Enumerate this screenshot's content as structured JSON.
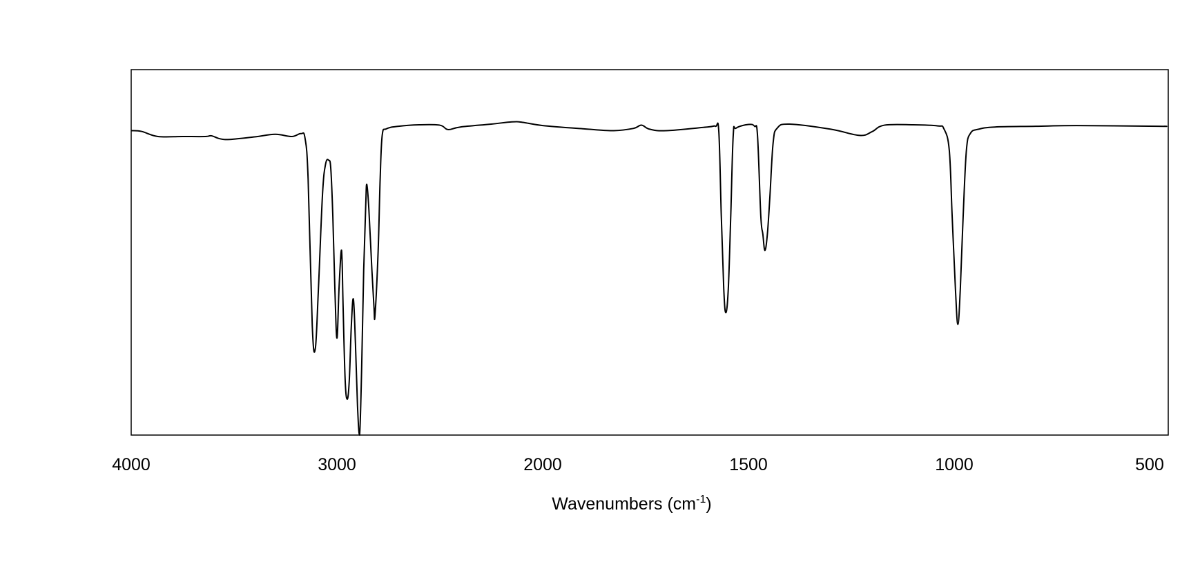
{
  "chart_data": {
    "type": "line",
    "xlabel": "Wavenumbers (cm",
    "xlabel_sup": "-1",
    "xlabel_suffix": ")",
    "xlim": [
      4000,
      475
    ],
    "x_reversed": true,
    "ylim": [
      0,
      1
    ],
    "grid": false,
    "x_ticks": [
      {
        "value": 4000,
        "label": "4000"
      },
      {
        "value": 3000,
        "label": "3000"
      },
      {
        "value": 2000,
        "label": "2000"
      },
      {
        "value": 1500,
        "label": "1500"
      },
      {
        "value": 1000,
        "label": "1000"
      },
      {
        "value": 500,
        "label": "500"
      }
    ],
    "series": [
      {
        "color": "#000000",
        "points": [
          [
            4000,
            0.833
          ],
          [
            3950,
            0.831
          ],
          [
            3870,
            0.817
          ],
          [
            3750,
            0.817
          ],
          [
            3640,
            0.817
          ],
          [
            3610,
            0.819
          ],
          [
            3570,
            0.811
          ],
          [
            3520,
            0.809
          ],
          [
            3400,
            0.816
          ],
          [
            3300,
            0.823
          ],
          [
            3220,
            0.817
          ],
          [
            3175,
            0.825
          ],
          [
            3155,
            0.812
          ],
          [
            3140,
            0.7
          ],
          [
            3120,
            0.3
          ],
          [
            3105,
            0.237
          ],
          [
            3090,
            0.4
          ],
          [
            3070,
            0.66
          ],
          [
            3055,
            0.742
          ],
          [
            3040,
            0.752
          ],
          [
            3030,
            0.73
          ],
          [
            3020,
            0.6
          ],
          [
            3010,
            0.4
          ],
          [
            3000,
            0.265
          ],
          [
            2990,
            0.4
          ],
          [
            2980,
            0.5
          ],
          [
            2975,
            0.477
          ],
          [
            2970,
            0.35
          ],
          [
            2960,
            0.15
          ],
          [
            2950,
            0.098
          ],
          [
            2940,
            0.15
          ],
          [
            2930,
            0.3
          ],
          [
            2920,
            0.372
          ],
          [
            2910,
            0.25
          ],
          [
            2900,
            0.08
          ],
          [
            2890,
            0.0
          ],
          [
            2880,
            0.18
          ],
          [
            2870,
            0.45
          ],
          [
            2860,
            0.63
          ],
          [
            2855,
            0.686
          ],
          [
            2845,
            0.62
          ],
          [
            2830,
            0.45
          ],
          [
            2820,
            0.35
          ],
          [
            2815,
            0.328
          ],
          [
            2800,
            0.5
          ],
          [
            2790,
            0.7
          ],
          [
            2780,
            0.82
          ],
          [
            2760,
            0.838
          ],
          [
            2700,
            0.845
          ],
          [
            2600,
            0.849
          ],
          [
            2500,
            0.848
          ],
          [
            2460,
            0.836
          ],
          [
            2400,
            0.843
          ],
          [
            2250,
            0.851
          ],
          [
            2150,
            0.857
          ],
          [
            2100,
            0.856
          ],
          [
            2000,
            0.847
          ],
          [
            1900,
            0.838
          ],
          [
            1830,
            0.833
          ],
          [
            1780,
            0.839
          ],
          [
            1760,
            0.848
          ],
          [
            1740,
            0.837
          ],
          [
            1700,
            0.833
          ],
          [
            1600,
            0.843
          ],
          [
            1580,
            0.845
          ],
          [
            1572,
            0.83
          ],
          [
            1566,
            0.6
          ],
          [
            1560,
            0.4
          ],
          [
            1555,
            0.335
          ],
          [
            1549,
            0.4
          ],
          [
            1543,
            0.6
          ],
          [
            1537,
            0.82
          ],
          [
            1530,
            0.84
          ],
          [
            1500,
            0.85
          ],
          [
            1485,
            0.845
          ],
          [
            1478,
            0.82
          ],
          [
            1470,
            0.6
          ],
          [
            1465,
            0.55
          ],
          [
            1460,
            0.505
          ],
          [
            1454,
            0.55
          ],
          [
            1448,
            0.65
          ],
          [
            1440,
            0.8
          ],
          [
            1430,
            0.84
          ],
          [
            1400,
            0.851
          ],
          [
            1300,
            0.837
          ],
          [
            1230,
            0.82
          ],
          [
            1200,
            0.83
          ],
          [
            1170,
            0.848
          ],
          [
            1100,
            0.849
          ],
          [
            1040,
            0.846
          ],
          [
            1025,
            0.838
          ],
          [
            1012,
            0.78
          ],
          [
            1005,
            0.6
          ],
          [
            997,
            0.4
          ],
          [
            991,
            0.303
          ],
          [
            985,
            0.4
          ],
          [
            978,
            0.6
          ],
          [
            970,
            0.78
          ],
          [
            960,
            0.826
          ],
          [
            940,
            0.837
          ],
          [
            900,
            0.843
          ],
          [
            800,
            0.845
          ],
          [
            700,
            0.847
          ],
          [
            500,
            0.845
          ],
          [
            485,
            0.845
          ]
        ]
      }
    ]
  }
}
